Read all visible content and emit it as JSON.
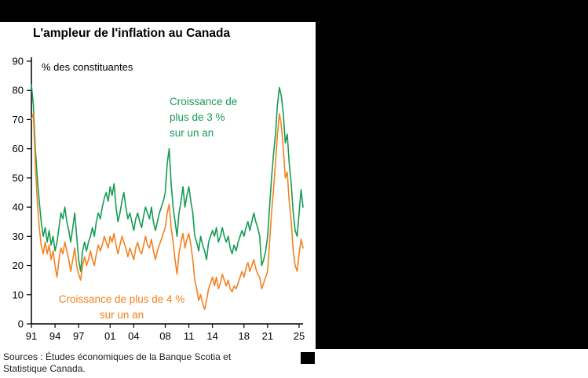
{
  "page": {
    "title": "L'ampleur de l'inflation au Canada",
    "source_note": "Sources : Études économiques de la Banque Scotia et\nStatistique Canada."
  },
  "annotations": {
    "green_label": "Croissance de\nplus de 3 %\nsur un an",
    "orange_label": "Croissance de plus de 4 %\nsur un an"
  },
  "colors": {
    "green_series": "#169c54",
    "orange_series": "#f58220",
    "axis": "#000000",
    "panel_background": "#ffffff",
    "stage_background": "#000000"
  },
  "chart_data": {
    "type": "line",
    "title": "L'ampleur de l'inflation au Canada",
    "ylabel": "% des constituantes",
    "xlabel": "",
    "ylim": [
      0,
      90
    ],
    "ytick_step": 10,
    "xlim": [
      1991,
      2025.5
    ],
    "grid": false,
    "legend_position": "inline-annotations",
    "x_unit": "year (quarterly sampling)",
    "x_start": 1991.0,
    "x_step": 0.25,
    "xticks": [
      {
        "label": "91",
        "year": 1991
      },
      {
        "label": "94",
        "year": 1994
      },
      {
        "label": "97",
        "year": 1997
      },
      {
        "label": "01",
        "year": 2001
      },
      {
        "label": "04",
        "year": 2004
      },
      {
        "label": "08",
        "year": 2008
      },
      {
        "label": "11",
        "year": 2011
      },
      {
        "label": "14",
        "year": 2014
      },
      {
        "label": "18",
        "year": 2018
      },
      {
        "label": "21",
        "year": 2021
      },
      {
        "label": "25",
        "year": 2025
      }
    ],
    "series": [
      {
        "name": "Croissance de plus de 3 % sur un an",
        "color": "#169c54",
        "values": [
          82,
          75,
          60,
          50,
          42,
          35,
          30,
          33,
          28,
          32,
          27,
          30,
          25,
          28,
          33,
          38,
          36,
          40,
          35,
          32,
          28,
          33,
          38,
          30,
          22,
          18,
          25,
          28,
          25,
          28,
          30,
          33,
          30,
          35,
          38,
          36,
          40,
          43,
          45,
          42,
          47,
          44,
          48,
          40,
          35,
          38,
          42,
          45,
          40,
          36,
          38,
          35,
          32,
          36,
          38,
          35,
          33,
          37,
          40,
          38,
          36,
          40,
          35,
          32,
          35,
          38,
          40,
          42,
          45,
          55,
          60,
          48,
          40,
          35,
          30,
          38,
          42,
          47,
          40,
          44,
          47,
          42,
          38,
          30,
          28,
          25,
          30,
          27,
          25,
          22,
          28,
          30,
          32,
          30,
          33,
          28,
          30,
          33,
          30,
          28,
          30,
          26,
          24,
          27,
          25,
          28,
          30,
          32,
          30,
          33,
          35,
          32,
          35,
          38,
          35,
          33,
          30,
          20,
          22,
          25,
          30,
          40,
          50,
          58,
          65,
          75,
          81,
          78,
          72,
          62,
          65,
          55,
          48,
          38,
          32,
          30,
          38,
          46,
          40
        ]
      },
      {
        "name": "Croissance de plus de 4 % sur un an",
        "color": "#f58220",
        "values": [
          70,
          72,
          55,
          42,
          33,
          27,
          24,
          28,
          24,
          27,
          22,
          25,
          20,
          16,
          22,
          26,
          24,
          28,
          25,
          22,
          18,
          22,
          26,
          20,
          17,
          15,
          20,
          23,
          20,
          22,
          25,
          22,
          20,
          24,
          27,
          25,
          27,
          30,
          28,
          26,
          30,
          28,
          31,
          27,
          24,
          27,
          30,
          28,
          26,
          23,
          26,
          24,
          22,
          26,
          28,
          25,
          24,
          27,
          30,
          27,
          26,
          29,
          25,
          22,
          25,
          27,
          29,
          31,
          33,
          38,
          41,
          33,
          28,
          22,
          17,
          24,
          28,
          31,
          26,
          29,
          31,
          27,
          22,
          15,
          12,
          8,
          10,
          7,
          5,
          8,
          12,
          14,
          16,
          13,
          16,
          12,
          14,
          17,
          15,
          13,
          15,
          12,
          11,
          13,
          12,
          14,
          16,
          18,
          16,
          19,
          21,
          18,
          20,
          22,
          19,
          17,
          16,
          12,
          14,
          16,
          18,
          28,
          38,
          46,
          55,
          65,
          72,
          68,
          60,
          50,
          52,
          42,
          35,
          25,
          20,
          18,
          24,
          29,
          26
        ]
      }
    ]
  }
}
